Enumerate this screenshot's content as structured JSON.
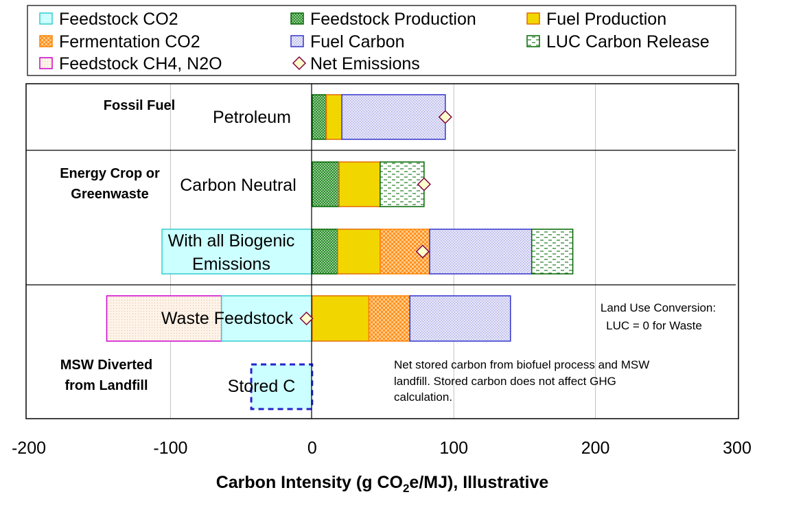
{
  "chart_data": {
    "type": "bar",
    "orientation": "horizontal",
    "stacked": true,
    "xlabel_parts": [
      "Carbon Intensity (g CO",
      "2",
      "e/MJ), Illustrative"
    ],
    "xlim": [
      -200,
      300
    ],
    "xticks": [
      "-200",
      "-100",
      "0",
      "100",
      "200",
      "300"
    ],
    "gridlines": [
      -100,
      100,
      200
    ],
    "legend": [
      {
        "key": "feedstock_co2",
        "label": "Feedstock CO2",
        "type": "box",
        "fill": "#ccffff",
        "stroke": "#33cccc"
      },
      {
        "key": "feedstock_production",
        "label": "Feedstock Production",
        "type": "box",
        "fill": "#1f7a1f",
        "stroke": "#006600",
        "pattern": "dots"
      },
      {
        "key": "fuel_production",
        "label": "Fuel Production",
        "type": "box",
        "fill": "#ffd400",
        "stroke": "#e06c00"
      },
      {
        "key": "fermentation_co2",
        "label": "Fermentation CO2",
        "type": "box",
        "fill": "#ff9933",
        "stroke": "#ff8000",
        "pattern": "checker"
      },
      {
        "key": "fuel_carbon",
        "label": "Fuel Carbon",
        "type": "box",
        "fill": "#e0e0f8",
        "stroke": "#3333cc",
        "pattern": "lavender"
      },
      {
        "key": "luc_carbon_release",
        "label": "LUC Carbon Release",
        "type": "box",
        "fill": "#ffffff",
        "stroke": "#006600",
        "pattern": "dashes"
      },
      {
        "key": "feedstock_ch4_n2o",
        "label": "Feedstock CH4, N2O",
        "type": "box",
        "fill": "#fbeef4",
        "stroke": "#cc00cc"
      },
      {
        "key": "net_emissions",
        "label": "Net Emissions",
        "type": "diamond",
        "fill": "#ffffcc",
        "stroke": "#800040"
      }
    ],
    "groups": [
      {
        "label_lines": [
          "Fossil Fuel"
        ]
      },
      {
        "label_lines": [
          "Energy Crop or",
          "Greenwaste"
        ]
      },
      {
        "label_lines": [
          "MSW Diverted",
          "from Landfill"
        ]
      }
    ],
    "bars": [
      {
        "label_lines": [
          "Petroleum"
        ],
        "segments": [
          {
            "series": "feedstock_production",
            "start": 0,
            "end": 10
          },
          {
            "series": "fuel_production",
            "start": 10,
            "end": 21
          },
          {
            "series": "fuel_carbon",
            "start": 21,
            "end": 94
          }
        ],
        "net": 94
      },
      {
        "label_lines": [
          "Carbon Neutral"
        ],
        "segments": [
          {
            "series": "feedstock_production",
            "start": 0,
            "end": 19
          },
          {
            "series": "fuel_production",
            "start": 19,
            "end": 48
          },
          {
            "series": "luc_carbon_release",
            "start": 48,
            "end": 79
          }
        ],
        "net": 79
      },
      {
        "label_lines": [
          "With all Biogenic",
          "Emissions"
        ],
        "segments": [
          {
            "series": "feedstock_co2",
            "start": -106,
            "end": 0
          },
          {
            "series": "feedstock_production",
            "start": 0,
            "end": 18
          },
          {
            "series": "fuel_production",
            "start": 18,
            "end": 48
          },
          {
            "series": "fermentation_co2",
            "start": 48,
            "end": 83
          },
          {
            "series": "fuel_carbon",
            "start": 83,
            "end": 155
          },
          {
            "series": "luc_carbon_release",
            "start": 155,
            "end": 184
          }
        ],
        "net": 78
      },
      {
        "label_lines": [
          "Waste Feedstock"
        ],
        "segments": [
          {
            "series": "feedstock_ch4_n2o",
            "start": -145,
            "end": -64
          },
          {
            "series": "feedstock_co2",
            "start": -64,
            "end": 0
          },
          {
            "series": "fuel_production",
            "start": 0,
            "end": 40
          },
          {
            "series": "fermentation_co2",
            "start": 40,
            "end": 69
          },
          {
            "series": "fuel_carbon",
            "start": 69,
            "end": 140
          }
        ],
        "net": -4
      },
      {
        "label_lines": [
          "Stored C"
        ],
        "segments": [
          {
            "series": "stored_c",
            "start": -43,
            "end": 0
          }
        ],
        "net": null
      }
    ],
    "annotations": [
      {
        "id": "luc_note",
        "lines": [
          "Land Use Conversion:",
          "LUC = 0 for  Waste"
        ]
      },
      {
        "id": "stored_note",
        "lines": [
          "Net stored carbon from biofuel process and MSW",
          "landfill.  Stored carbon does not affect GHG",
          "calculation."
        ]
      }
    ]
  }
}
